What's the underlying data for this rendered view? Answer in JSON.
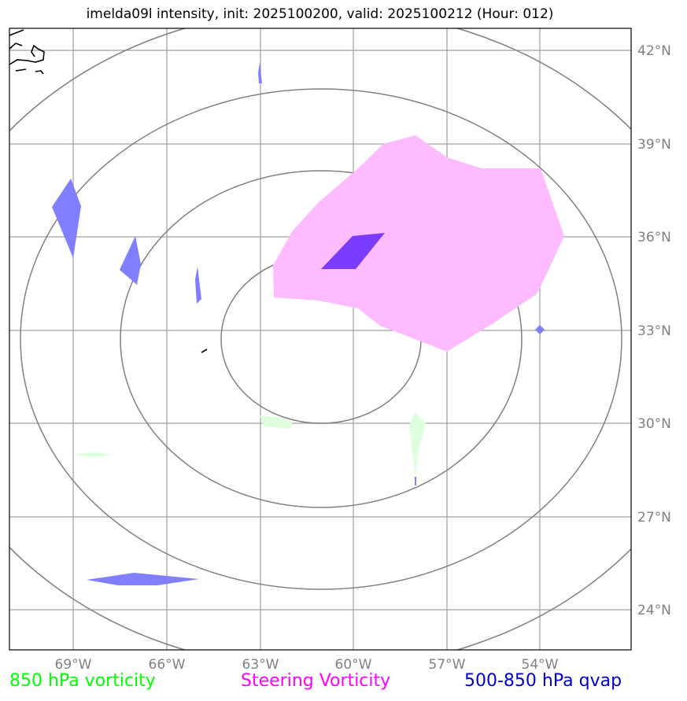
{
  "title": "imelda09l intensity, init: 2025100200, valid: 2025100212 (Hour: 012)",
  "colors": {
    "vort850": "#00ff00",
    "steering": "#ff00ff",
    "qvap": "#0000cc",
    "steering_fill": "#ffbbff",
    "qvap_fill": "#7f7fff",
    "overlap_fill": "#7a3cff",
    "vort850_fill": "#ddffdd",
    "grid": "#a0a0a0",
    "rings": "#808080"
  },
  "map": {
    "lat_labels": [
      "42°N",
      "39°N",
      "36°N",
      "33°N",
      "30°N",
      "27°N",
      "24°N"
    ],
    "lon_labels": [
      "69°W",
      "66°W",
      "63°W",
      "60°W",
      "57°W",
      "54°W"
    ]
  },
  "legend": {
    "vort850": "850 hPa vorticity",
    "steering": "Steering Vorticity",
    "qvap": "500-850 hPa qvap"
  }
}
